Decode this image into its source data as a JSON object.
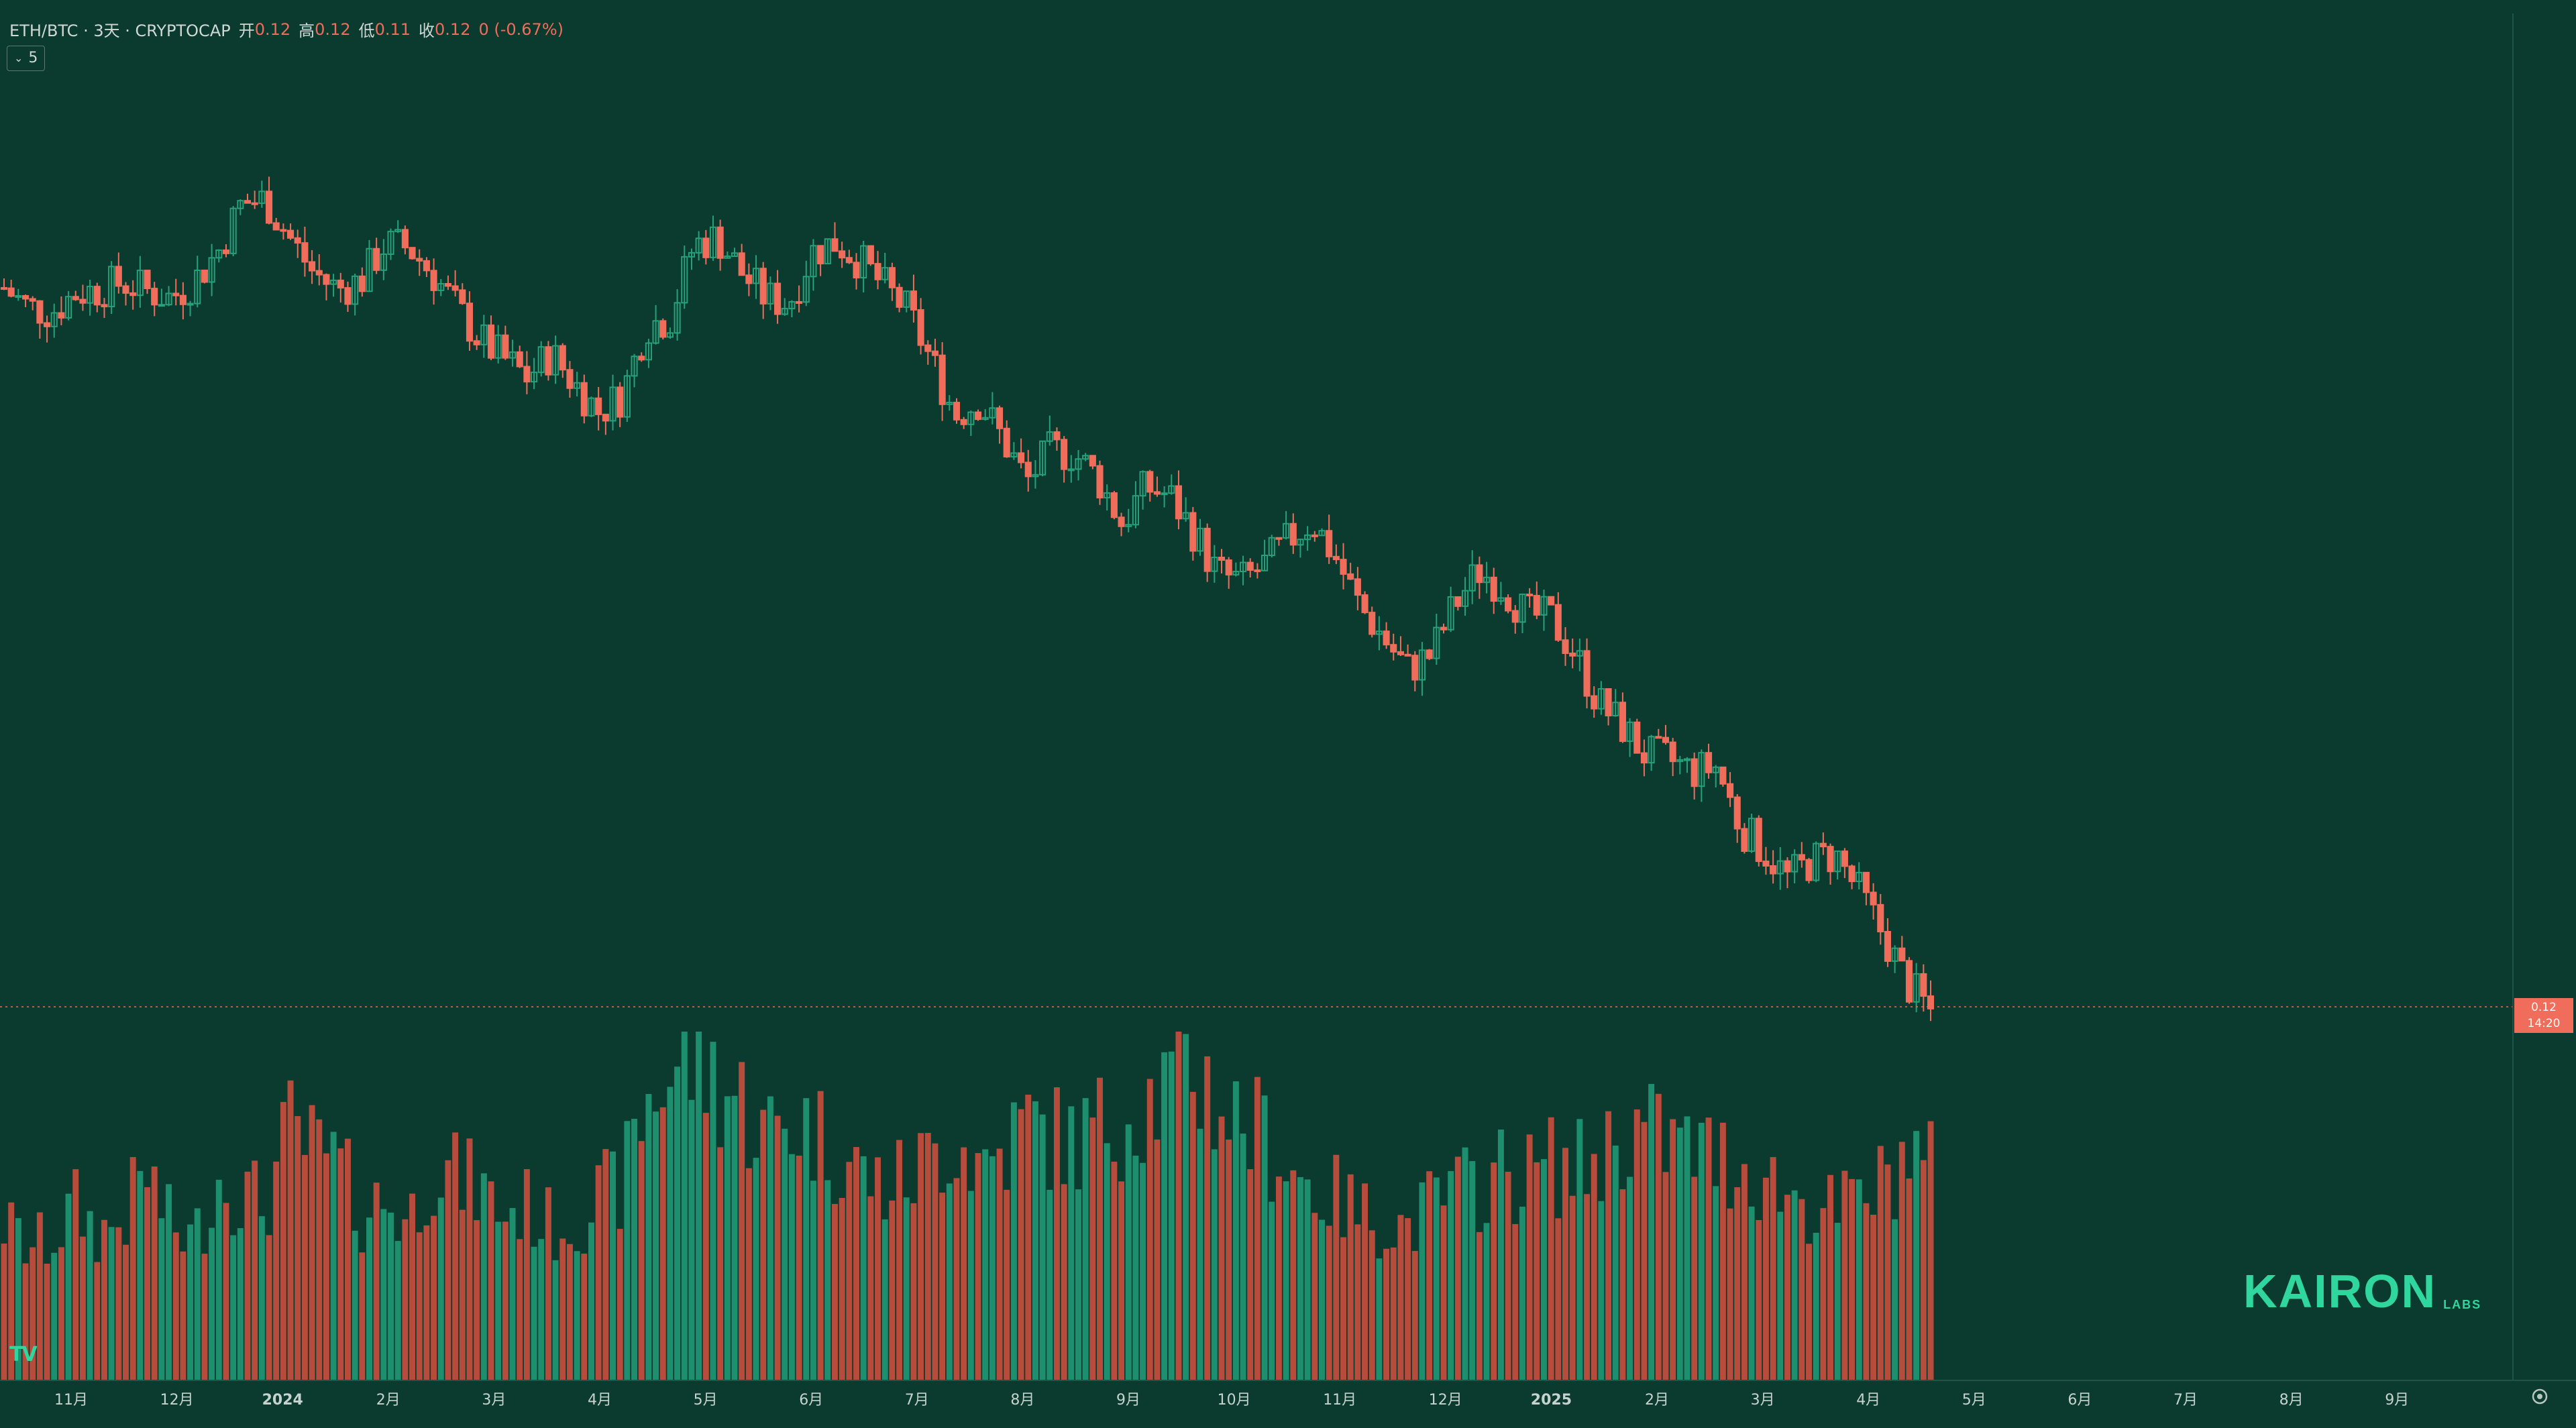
{
  "header": {
    "symbol": "ETH/BTC · 3天 · CRYPTOCAP",
    "open_label": "开",
    "open_value": "0.12",
    "high_label": "高",
    "high_value": "0.12",
    "low_label": "低",
    "low_value": "0.11",
    "close_label": "收",
    "close_value": "0.12",
    "change": "0 (-0.67%)",
    "collapse_count": "5"
  },
  "price_tag": {
    "value": "0.12",
    "sub": "14:20"
  },
  "brand": {
    "name": "KAIRON",
    "sub": "LABS"
  },
  "tv_logo": "TV",
  "icons": {
    "settings": "gear-icon",
    "collapse": "chevron-down-icon",
    "tv": "tradingview-logo-icon"
  },
  "colors": {
    "background": "#0b3a2f",
    "up": "#26a17a",
    "down": "#ef6d5a",
    "vol_up": "#1e8f6e",
    "vol_down": "#b74c3c",
    "brand": "#2fd69e"
  },
  "chart_data": {
    "type": "candlestick",
    "interval": "3天",
    "y_range": [
      0.11,
      0.12
    ],
    "grid": false,
    "x_tick_labels": [
      "11月",
      "12月",
      "2024",
      "2月",
      "3月",
      "4月",
      "5月",
      "6月",
      "7月",
      "8月",
      "9月",
      "10月",
      "11月",
      "12月",
      "2025",
      "2月",
      "3月",
      "4月",
      "5月",
      "6月",
      "7月",
      "8月",
      "9月"
    ],
    "last": {
      "open": 0.12,
      "high": 0.12,
      "low": 0.11,
      "close": 0.12,
      "change": "0 (-0.67%)"
    },
    "price_path": [
      0.0629,
      0.0615,
      0.0612,
      0.0625,
      0.0628,
      0.0633,
      0.0627,
      0.0622,
      0.0634,
      0.0655,
      0.069,
      0.0692,
      0.0665,
      0.064,
      0.0628,
      0.0634,
      0.066,
      0.0658,
      0.064,
      0.0615,
      0.0592,
      0.0578,
      0.0565,
      0.0582,
      0.056,
      0.054,
      0.0552,
      0.0602,
      0.0608,
      0.066,
      0.0665,
      0.064,
      0.0622,
      0.0618,
      0.0655,
      0.0662,
      0.0648,
      0.063,
      0.0612,
      0.0576,
      0.0538,
      0.0548,
      0.052,
      0.049,
      0.0512,
      0.051,
      0.0492,
      0.046,
      0.0486,
      0.048,
      0.0454,
      0.0424,
      0.0418,
      0.043,
      0.0448,
      0.0462,
      0.0435,
      0.04,
      0.0378,
      0.0355,
      0.0366,
      0.0402,
      0.0426,
      0.0415,
      0.0394,
      0.0392,
      0.0368,
      0.0332,
      0.0315,
      0.0294,
      0.029,
      0.0282,
      0.0285,
      0.0242,
      0.0225,
      0.0205,
      0.0218,
      0.0222,
      0.0195,
      0.0165,
      0.013,
      0.011
    ],
    "volume_path": [
      0.45,
      0.38,
      0.4,
      0.5,
      0.42,
      0.46,
      0.6,
      0.44,
      0.4,
      0.58,
      0.54,
      0.5,
      0.72,
      0.65,
      0.62,
      0.48,
      0.52,
      0.45,
      0.62,
      0.58,
      0.55,
      0.48,
      0.5,
      0.44,
      0.46,
      0.52,
      0.56,
      0.8,
      0.88,
      0.92,
      0.86,
      0.8,
      0.7,
      0.75,
      0.72,
      0.66,
      0.6,
      0.55,
      0.58,
      0.64,
      0.7,
      0.62,
      0.66,
      0.74,
      0.7,
      0.68,
      0.72,
      0.76,
      0.8,
      0.84,
      0.9,
      0.8,
      0.74,
      0.7,
      0.62,
      0.55,
      0.52,
      0.48,
      0.46,
      0.44,
      0.5,
      0.54,
      0.56,
      0.6,
      0.58,
      0.62,
      0.6,
      0.64,
      0.7,
      0.72,
      0.68,
      0.66,
      0.64,
      0.62,
      0.58,
      0.54,
      0.5,
      0.48,
      0.52,
      0.56,
      0.66,
      0.6
    ]
  }
}
